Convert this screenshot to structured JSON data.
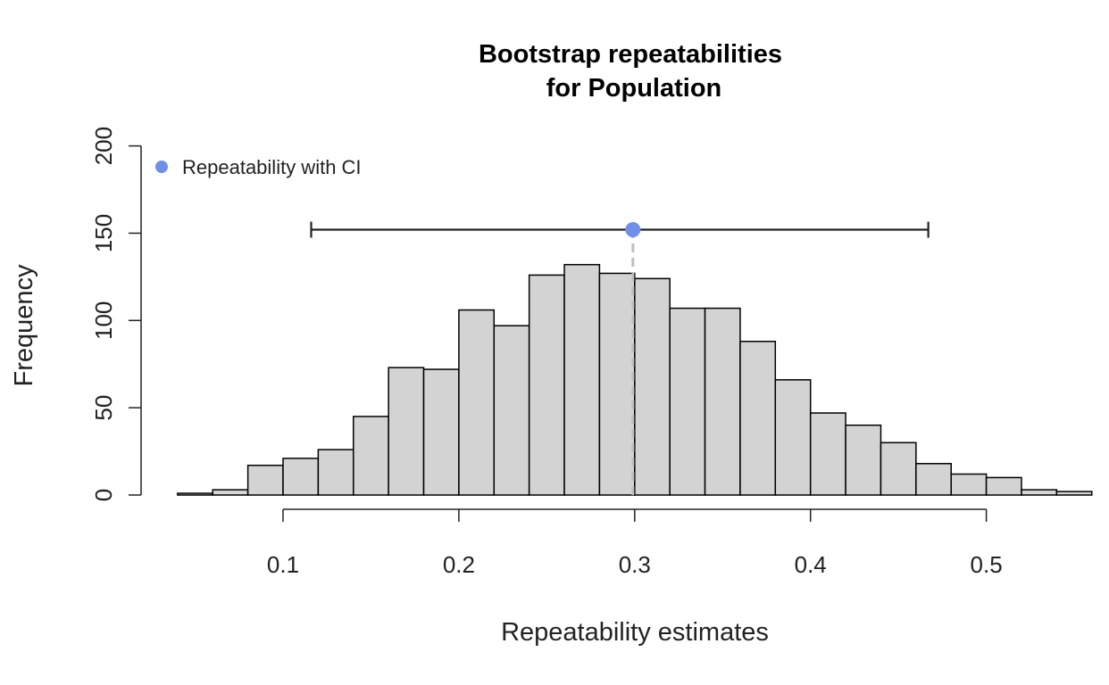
{
  "chart_data": {
    "type": "bar",
    "subtype": "histogram",
    "title": "Bootstrap repeatabilities",
    "subtitle": "for Population",
    "xlabel": "Repeatability estimates",
    "ylabel": "Frequency",
    "xlim": [
      0.04,
      0.56
    ],
    "ylim": [
      0,
      200
    ],
    "x_ticks": [
      "0.1",
      "0.2",
      "0.3",
      "0.4",
      "0.5"
    ],
    "y_ticks": [
      "0",
      "50",
      "100",
      "150",
      "200"
    ],
    "grid": false,
    "bin_width": 0.02,
    "bin_start": 0.04,
    "values": [
      1,
      3,
      17,
      21,
      26,
      45,
      73,
      72,
      106,
      97,
      126,
      132,
      127,
      124,
      107,
      107,
      88,
      66,
      47,
      40,
      30,
      18,
      12,
      10,
      3,
      2
    ],
    "estimate": {
      "value": 0.299,
      "ci_lower": 0.116,
      "ci_upper": 0.467,
      "marker_height": 152
    },
    "legend": {
      "position": "top-left",
      "entries": [
        "Repeatability with CI"
      ]
    },
    "colors": {
      "bar_fill": "#d3d3d3",
      "bar_stroke": "#000000",
      "point": "#6f8fe8",
      "estimate_line": "#bfbfbf",
      "axis": "#222222"
    }
  }
}
